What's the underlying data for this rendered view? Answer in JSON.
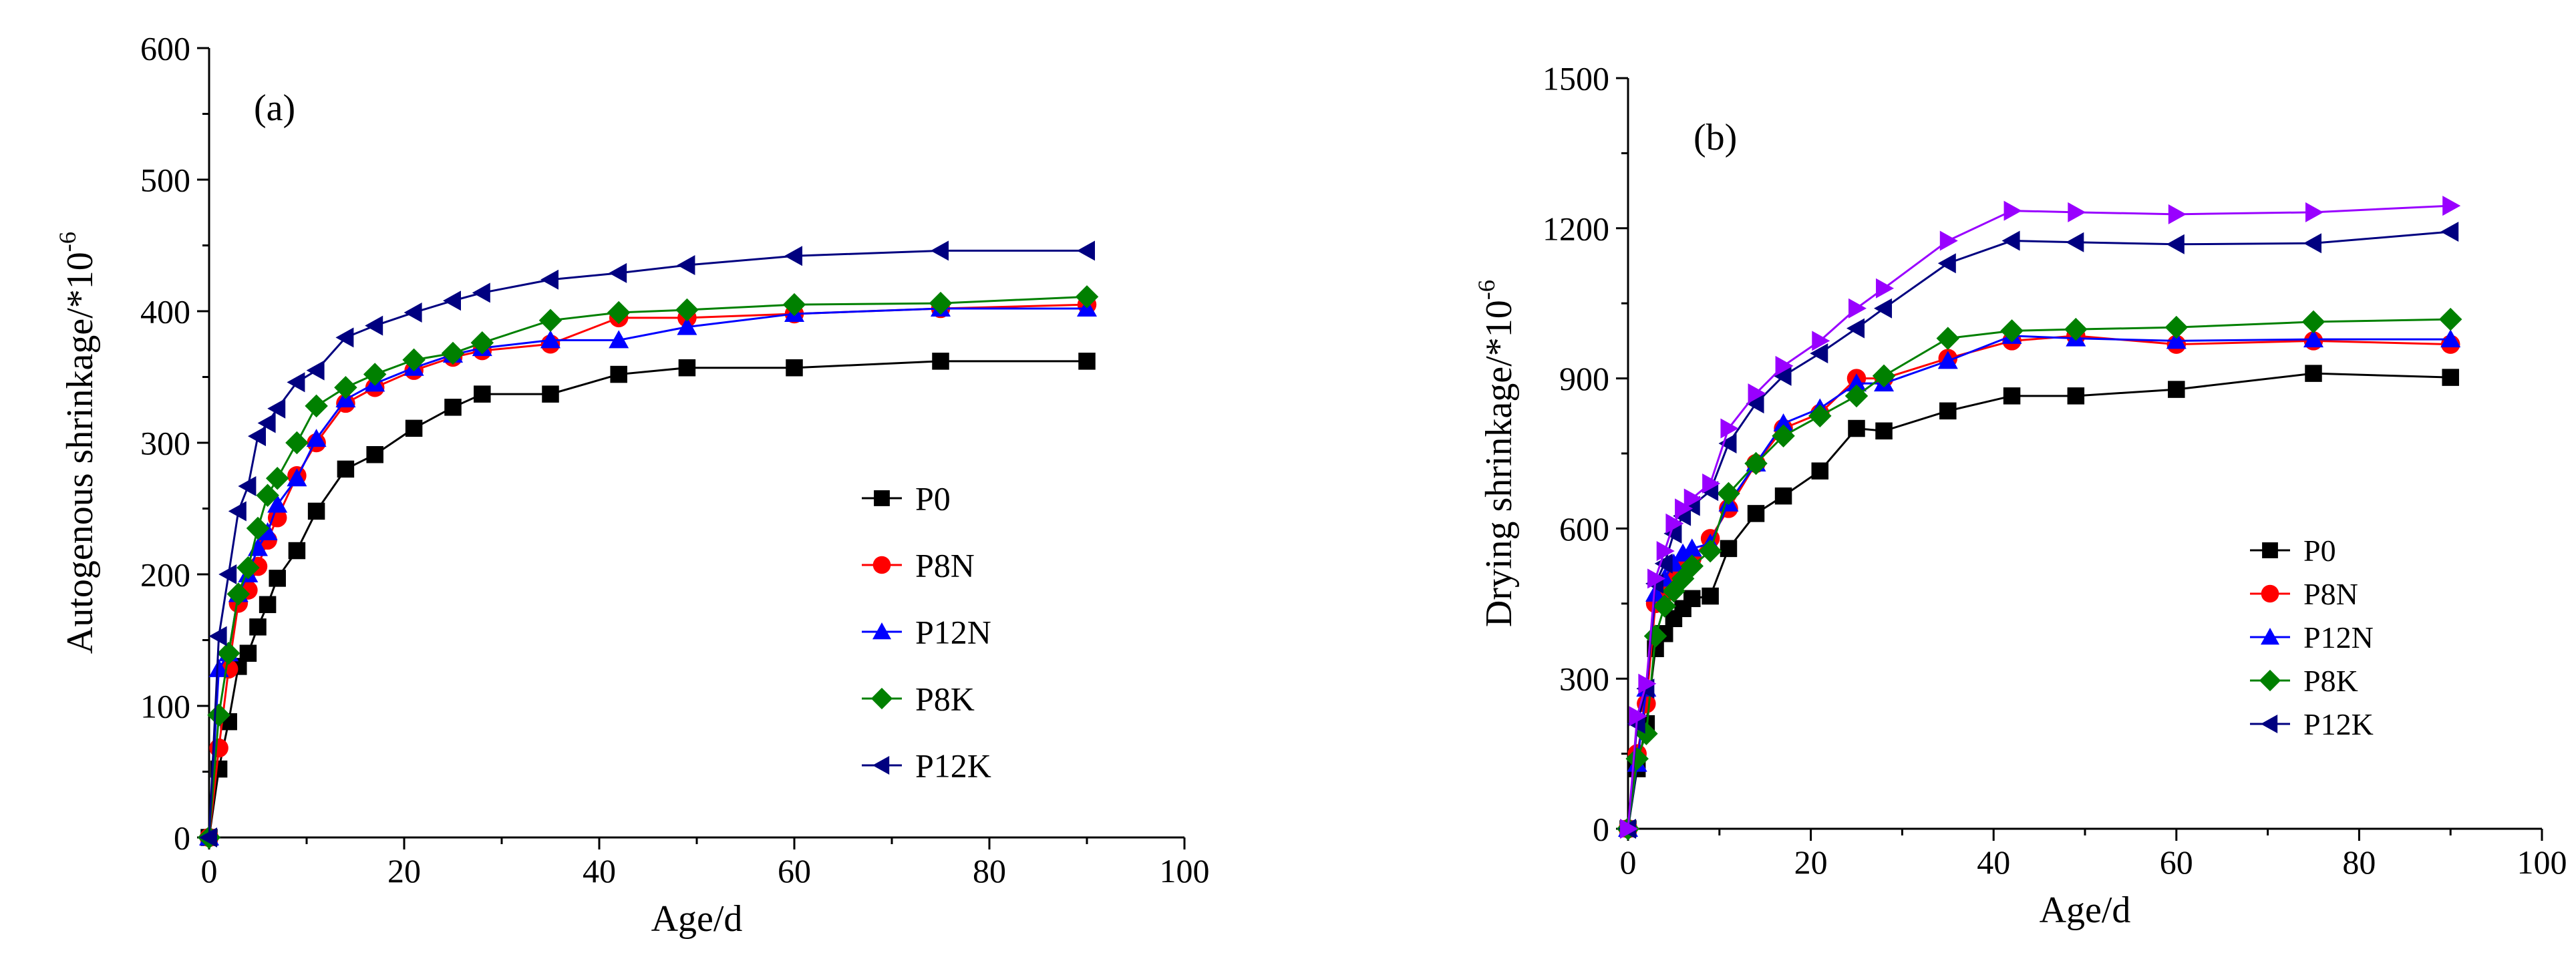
{
  "chart_data": [
    {
      "id": "a",
      "type": "line",
      "panel_label": "(a)",
      "xlabel": "Age/d",
      "ylabel_main": "Autogenous shrinkage/*10",
      "ylabel_sup": "-6",
      "xlim": [
        0,
        100
      ],
      "ylim": [
        0,
        600
      ],
      "xticks": [
        0,
        20,
        40,
        60,
        80,
        100
      ],
      "yticks": [
        0,
        100,
        200,
        300,
        400,
        500,
        600
      ],
      "legend_position": "center-right",
      "series": [
        {
          "name": "P0",
          "color": "#000000",
          "marker": "square",
          "x": [
            0,
            1,
            2,
            3,
            4,
            5,
            6,
            7,
            9,
            11,
            14,
            17,
            21,
            25,
            28,
            35,
            42,
            49,
            60,
            75,
            90
          ],
          "y": [
            0,
            52,
            88,
            130,
            140,
            160,
            177,
            197,
            218,
            248,
            280,
            291,
            311,
            327,
            337,
            337,
            352,
            357,
            357,
            362,
            362
          ]
        },
        {
          "name": "P8N",
          "color": "#ff0000",
          "marker": "circle",
          "x": [
            0,
            1,
            2,
            3,
            4,
            5,
            6,
            7,
            9,
            11,
            14,
            17,
            21,
            25,
            28,
            35,
            42,
            49,
            60,
            75,
            90
          ],
          "y": [
            0,
            68,
            128,
            178,
            188,
            206,
            226,
            243,
            275,
            300,
            330,
            342,
            355,
            365,
            370,
            375,
            395,
            395,
            398,
            402,
            405
          ]
        },
        {
          "name": "P12N",
          "color": "#0000ff",
          "marker": "triangle",
          "x": [
            0,
            1,
            2,
            3,
            4,
            5,
            6,
            7,
            9,
            11,
            14,
            17,
            21,
            25,
            28,
            35,
            42,
            49,
            60,
            75,
            90
          ],
          "y": [
            0,
            128,
            140,
            185,
            200,
            220,
            232,
            253,
            273,
            303,
            333,
            345,
            357,
            367,
            372,
            378,
            378,
            388,
            398,
            402,
            402
          ]
        },
        {
          "name": "P8K",
          "color": "#008000",
          "marker": "diamond",
          "x": [
            0,
            1,
            2,
            3,
            4,
            5,
            6,
            7,
            9,
            11,
            14,
            17,
            21,
            25,
            28,
            35,
            42,
            49,
            60,
            75,
            90
          ],
          "y": [
            0,
            93,
            140,
            185,
            205,
            235,
            260,
            273,
            300,
            328,
            342,
            352,
            363,
            368,
            376,
            393,
            399,
            401,
            405,
            406,
            411
          ]
        },
        {
          "name": "P12K",
          "color": "#000080",
          "marker": "left-triangle",
          "x": [
            0,
            1,
            2,
            3,
            4,
            5,
            6,
            7,
            9,
            11,
            14,
            17,
            21,
            25,
            28,
            35,
            42,
            49,
            60,
            75,
            90
          ],
          "y": [
            0,
            153,
            200,
            248,
            267,
            305,
            315,
            326,
            346,
            355,
            380,
            389,
            399,
            408,
            414,
            424,
            429,
            435,
            442,
            446,
            446
          ]
        }
      ]
    },
    {
      "id": "b",
      "type": "line",
      "panel_label": "(b)",
      "xlabel": "Age/d",
      "ylabel_main": "Drying shrinkage/*10",
      "ylabel_sup": "-6",
      "xlim": [
        0,
        100
      ],
      "ylim": [
        0,
        1500
      ],
      "xticks": [
        0,
        20,
        40,
        60,
        80,
        100
      ],
      "yticks": [
        0,
        300,
        600,
        900,
        1200,
        1500
      ],
      "legend_position": "bottom-right",
      "series": [
        {
          "name": "P0",
          "color": "#000000",
          "marker": "square",
          "x": [
            0,
            1,
            2,
            3,
            4,
            5,
            6,
            7,
            9,
            11,
            14,
            17,
            21,
            25,
            28,
            35,
            42,
            49,
            60,
            75,
            90
          ],
          "y": [
            0,
            120,
            210,
            360,
            390,
            420,
            440,
            460,
            465,
            560,
            630,
            665,
            715,
            800,
            795,
            835,
            865,
            865,
            878,
            910,
            902
          ]
        },
        {
          "name": "P8N",
          "color": "#ff0000",
          "marker": "circle",
          "x": [
            0,
            1,
            2,
            3,
            4,
            5,
            6,
            7,
            9,
            11,
            14,
            17,
            21,
            25,
            28,
            35,
            42,
            49,
            60,
            75,
            90
          ],
          "y": [
            0,
            150,
            250,
            450,
            470,
            500,
            520,
            540,
            580,
            640,
            730,
            800,
            830,
            900,
            900,
            940,
            975,
            985,
            968,
            975,
            968
          ]
        },
        {
          "name": "P12N",
          "color": "#0000ff",
          "marker": "triangle",
          "x": [
            0,
            1,
            2,
            3,
            4,
            5,
            6,
            7,
            9,
            11,
            14,
            17,
            21,
            25,
            28,
            35,
            42,
            49,
            60,
            75,
            90
          ],
          "y": [
            0,
            130,
            280,
            470,
            500,
            530,
            550,
            560,
            570,
            650,
            730,
            810,
            840,
            890,
            890,
            935,
            985,
            980,
            975,
            978,
            978
          ]
        },
        {
          "name": "P8K",
          "color": "#008000",
          "marker": "diamond",
          "x": [
            0,
            1,
            2,
            3,
            4,
            5,
            6,
            7,
            9,
            11,
            14,
            17,
            21,
            25,
            28,
            35,
            42,
            49,
            60,
            75,
            90
          ],
          "y": [
            0,
            140,
            190,
            385,
            445,
            475,
            500,
            525,
            555,
            670,
            730,
            785,
            825,
            865,
            905,
            980,
            995,
            998,
            1002,
            1013,
            1018
          ]
        },
        {
          "name": "P12K",
          "color": "#000080",
          "marker": "left-triangle",
          "x": [
            0,
            1,
            2,
            3,
            4,
            5,
            6,
            7,
            9,
            11,
            14,
            17,
            21,
            25,
            28,
            35,
            42,
            49,
            60,
            75,
            90
          ],
          "y": [
            0,
            210,
            280,
            490,
            530,
            590,
            625,
            645,
            675,
            770,
            850,
            905,
            950,
            1000,
            1040,
            1130,
            1175,
            1172,
            1168,
            1170,
            1193
          ]
        },
        {
          "name": "",
          "color": "#9900ff",
          "marker": "right-triangle",
          "x": [
            0,
            1,
            2,
            3,
            4,
            5,
            6,
            7,
            9,
            11,
            14,
            17,
            21,
            25,
            28,
            35,
            42,
            49,
            60,
            75,
            90
          ],
          "y": [
            0,
            225,
            290,
            500,
            555,
            610,
            640,
            660,
            690,
            800,
            870,
            925,
            975,
            1040,
            1080,
            1175,
            1235,
            1232,
            1228,
            1232,
            1245
          ]
        }
      ]
    }
  ]
}
